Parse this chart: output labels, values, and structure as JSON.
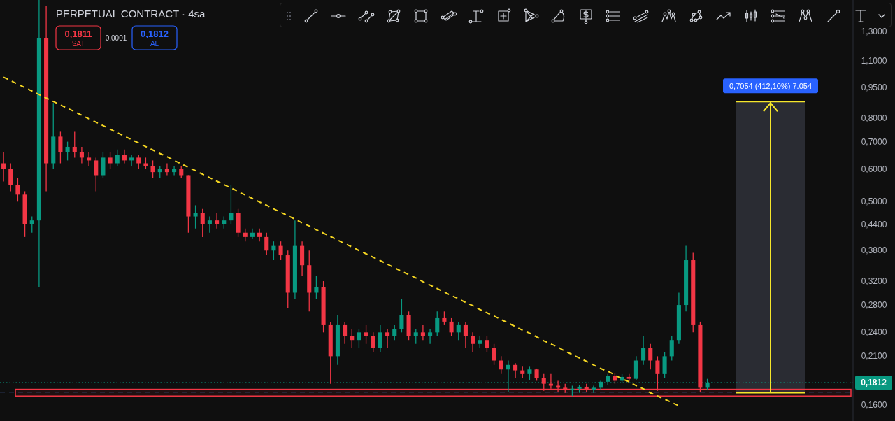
{
  "chart_data": {
    "type": "candlestick",
    "title": "PERPETUAL CONTRACT · 4sa",
    "categories": [
      null,
      null,
      null,
      null,
      null,
      null,
      null,
      null,
      null,
      null,
      null,
      null,
      null,
      null,
      null,
      null,
      null,
      null,
      null,
      null,
      null,
      null,
      null,
      null,
      null,
      null,
      null,
      null,
      null,
      null,
      null,
      null,
      null,
      null,
      null,
      null,
      null,
      null,
      null,
      null,
      null,
      null,
      null,
      null,
      null,
      null,
      null,
      null,
      null,
      null,
      null,
      null,
      null,
      null,
      null,
      null,
      null,
      null,
      null,
      null,
      null,
      null,
      null,
      null,
      null,
      null,
      null,
      null,
      null,
      null,
      null,
      null,
      null,
      null,
      null,
      null,
      null,
      null,
      null,
      null,
      null,
      null,
      null,
      null,
      null,
      null,
      null,
      null,
      null,
      null,
      null,
      null,
      null,
      null,
      null,
      null,
      null,
      null,
      null,
      null,
      null,
      null,
      null,
      null,
      null,
      null,
      null,
      null,
      null,
      null,
      null,
      null,
      null,
      null,
      null,
      null,
      null,
      null,
      null,
      null
    ],
    "ohlc": [
      [
        0.62,
        0.66,
        0.56,
        0.6
      ],
      [
        0.6,
        0.62,
        0.53,
        0.55
      ],
      [
        0.55,
        0.57,
        0.5,
        0.52
      ],
      [
        0.52,
        0.53,
        0.41,
        0.44
      ],
      [
        0.44,
        0.46,
        0.42,
        0.45
      ],
      [
        0.45,
        1.55,
        0.31,
        1.25
      ],
      [
        1.25,
        1.5,
        0.53,
        0.62
      ],
      [
        0.62,
        0.87,
        0.6,
        0.72
      ],
      [
        0.72,
        0.74,
        0.62,
        0.66
      ],
      [
        0.66,
        0.7,
        0.63,
        0.68
      ],
      [
        0.68,
        0.74,
        0.64,
        0.66
      ],
      [
        0.66,
        0.68,
        0.62,
        0.64
      ],
      [
        0.64,
        0.66,
        0.61,
        0.63
      ],
      [
        0.63,
        0.64,
        0.53,
        0.58
      ],
      [
        0.58,
        0.66,
        0.57,
        0.64
      ],
      [
        0.64,
        0.66,
        0.6,
        0.62
      ],
      [
        0.62,
        0.67,
        0.61,
        0.65
      ],
      [
        0.65,
        0.67,
        0.62,
        0.63
      ],
      [
        0.63,
        0.65,
        0.61,
        0.64
      ],
      [
        0.64,
        0.65,
        0.6,
        0.62
      ],
      [
        0.62,
        0.64,
        0.6,
        0.61
      ],
      [
        0.61,
        0.63,
        0.57,
        0.59
      ],
      [
        0.59,
        0.61,
        0.57,
        0.6
      ],
      [
        0.6,
        0.62,
        0.58,
        0.59
      ],
      [
        0.59,
        0.61,
        0.58,
        0.6
      ],
      [
        0.6,
        0.61,
        0.57,
        0.58
      ],
      [
        0.58,
        0.58,
        0.42,
        0.46
      ],
      [
        0.46,
        0.49,
        0.43,
        0.47
      ],
      [
        0.47,
        0.48,
        0.41,
        0.44
      ],
      [
        0.44,
        0.46,
        0.42,
        0.45
      ],
      [
        0.45,
        0.47,
        0.43,
        0.44
      ],
      [
        0.44,
        0.46,
        0.43,
        0.45
      ],
      [
        0.45,
        0.55,
        0.44,
        0.47
      ],
      [
        0.47,
        0.48,
        0.41,
        0.42
      ],
      [
        0.42,
        0.43,
        0.4,
        0.41
      ],
      [
        0.41,
        0.43,
        0.405,
        0.42
      ],
      [
        0.42,
        0.43,
        0.4,
        0.41
      ],
      [
        0.41,
        0.42,
        0.37,
        0.38
      ],
      [
        0.38,
        0.4,
        0.36,
        0.39
      ],
      [
        0.39,
        0.4,
        0.36,
        0.37
      ],
      [
        0.37,
        0.38,
        0.275,
        0.3
      ],
      [
        0.3,
        0.45,
        0.29,
        0.39
      ],
      [
        0.39,
        0.4,
        0.33,
        0.35
      ],
      [
        0.35,
        0.38,
        0.27,
        0.3
      ],
      [
        0.3,
        0.33,
        0.29,
        0.31
      ],
      [
        0.31,
        0.32,
        0.24,
        0.25
      ],
      [
        0.25,
        0.255,
        0.18,
        0.21
      ],
      [
        0.21,
        0.265,
        0.2,
        0.25
      ],
      [
        0.25,
        0.255,
        0.225,
        0.235
      ],
      [
        0.235,
        0.245,
        0.22,
        0.23
      ],
      [
        0.23,
        0.245,
        0.22,
        0.24
      ],
      [
        0.24,
        0.25,
        0.225,
        0.235
      ],
      [
        0.235,
        0.24,
        0.215,
        0.22
      ],
      [
        0.22,
        0.25,
        0.215,
        0.24
      ],
      [
        0.24,
        0.245,
        0.22,
        0.235
      ],
      [
        0.235,
        0.25,
        0.23,
        0.245
      ],
      [
        0.245,
        0.29,
        0.24,
        0.265
      ],
      [
        0.265,
        0.27,
        0.23,
        0.235
      ],
      [
        0.235,
        0.245,
        0.225,
        0.24
      ],
      [
        0.24,
        0.25,
        0.23,
        0.235
      ],
      [
        0.235,
        0.245,
        0.225,
        0.24
      ],
      [
        0.24,
        0.27,
        0.235,
        0.26
      ],
      [
        0.26,
        0.27,
        0.25,
        0.255
      ],
      [
        0.255,
        0.26,
        0.235,
        0.24
      ],
      [
        0.24,
        0.255,
        0.23,
        0.25
      ],
      [
        0.25,
        0.255,
        0.22,
        0.235
      ],
      [
        0.235,
        0.24,
        0.215,
        0.225
      ],
      [
        0.225,
        0.235,
        0.22,
        0.23
      ],
      [
        0.23,
        0.235,
        0.215,
        0.22
      ],
      [
        0.22,
        0.225,
        0.2,
        0.205
      ],
      [
        0.205,
        0.21,
        0.19,
        0.195
      ],
      [
        0.195,
        0.205,
        0.172,
        0.2
      ],
      [
        0.2,
        0.202,
        0.186,
        0.194
      ],
      [
        0.194,
        0.198,
        0.186,
        0.19
      ],
      [
        0.19,
        0.198,
        0.184,
        0.195
      ],
      [
        0.195,
        0.196,
        0.183,
        0.186
      ],
      [
        0.186,
        0.19,
        0.173,
        0.18
      ],
      [
        0.18,
        0.19,
        0.175,
        0.178
      ],
      [
        0.178,
        0.183,
        0.172,
        0.176
      ],
      [
        0.176,
        0.18,
        0.171,
        0.174
      ],
      [
        0.174,
        0.178,
        0.168,
        0.175
      ],
      [
        0.175,
        0.179,
        0.171,
        0.177
      ],
      [
        0.177,
        0.18,
        0.172,
        0.174
      ],
      [
        0.174,
        0.178,
        0.171,
        0.176
      ],
      [
        0.176,
        0.183,
        0.174,
        0.182
      ],
      [
        0.182,
        0.19,
        0.179,
        0.188
      ],
      [
        0.188,
        0.191,
        0.18,
        0.183
      ],
      [
        0.183,
        0.19,
        0.181,
        0.187
      ],
      [
        0.187,
        0.19,
        0.182,
        0.185
      ],
      [
        0.185,
        0.21,
        0.184,
        0.205
      ],
      [
        0.205,
        0.235,
        0.2,
        0.22
      ],
      [
        0.22,
        0.225,
        0.195,
        0.205
      ],
      [
        0.205,
        0.21,
        0.173,
        0.19
      ],
      [
        0.19,
        0.215,
        0.186,
        0.21
      ],
      [
        0.21,
        0.235,
        0.205,
        0.23
      ],
      [
        0.23,
        0.3,
        0.225,
        0.28
      ],
      [
        0.28,
        0.39,
        0.27,
        0.36
      ],
      [
        0.36,
        0.375,
        0.24,
        0.25
      ],
      [
        0.25,
        0.255,
        0.172,
        0.176
      ],
      [
        0.176,
        0.185,
        0.174,
        0.1812
      ],
      null,
      null,
      null,
      null,
      null,
      null,
      null,
      null,
      null,
      null,
      null,
      null,
      null,
      null,
      null,
      null,
      null,
      null,
      null,
      null
    ],
    "colors": [
      "#f23645",
      "#f23645",
      "#f23645",
      "#f23645",
      "#089981",
      "#089981",
      "#f23645",
      "#089981",
      "#f23645",
      "#089981",
      "#f23645",
      "#f23645",
      "#f23645",
      "#f23645",
      "#089981",
      "#f23645",
      "#089981",
      "#f23645",
      "#089981",
      "#f23645",
      "#f23645",
      "#f23645",
      "#089981",
      "#f23645",
      "#089981",
      "#f23645",
      "#f23645",
      "#089981",
      "#f23645",
      "#089981",
      "#f23645",
      "#089981",
      "#089981",
      "#f23645",
      "#f23645",
      "#089981",
      "#f23645",
      "#f23645",
      "#089981",
      "#f23645",
      "#f23645",
      "#089981",
      "#f23645",
      "#f23645",
      "#089981",
      "#f23645",
      "#f23645",
      "#089981",
      "#f23645",
      "#f23645",
      "#089981",
      "#f23645",
      "#f23645",
      "#089981",
      "#f23645",
      "#089981",
      "#089981",
      "#f23645",
      "#089981",
      "#f23645",
      "#089981",
      "#089981",
      "#f23645",
      "#f23645",
      "#089981",
      "#f23645",
      "#f23645",
      "#089981",
      "#f23645",
      "#f23645",
      "#f23645",
      "#089981",
      "#f23645",
      "#f23645",
      "#089981",
      "#f23645",
      "#f23645",
      "#f23645",
      "#f23645",
      "#f23645",
      "#089981",
      "#089981",
      "#f23645",
      "#089981",
      "#089981",
      "#089981",
      "#f23645",
      "#089981",
      "#f23645",
      "#089981",
      "#089981",
      "#f23645",
      "#f23645",
      "#089981",
      "#089981",
      "#089981",
      "#089981",
      "#f23645",
      "#f23645",
      "#089981",
      null,
      null,
      null,
      null,
      null,
      null,
      null,
      null,
      null,
      null,
      null,
      null,
      null,
      null,
      null,
      null,
      null,
      null,
      null,
      null
    ],
    "series": [
      {
        "type": "line",
        "color": "#f5d622",
        "line_style": "dashed",
        "values": [
          1.005,
          0.986,
          0.967,
          0.948,
          0.93,
          0.912,
          0.894,
          0.877,
          0.86,
          0.844,
          0.828,
          0.812,
          0.796,
          0.781,
          0.766,
          0.751,
          0.736,
          0.722,
          0.708,
          0.695,
          0.681,
          0.668,
          0.655,
          0.643,
          0.63,
          0.618,
          0.606,
          0.595,
          0.583,
          0.572,
          0.561,
          0.55,
          0.54,
          0.529,
          0.519,
          0.509,
          0.499,
          0.49,
          0.48,
          0.471,
          0.462,
          0.453,
          0.444,
          0.436,
          0.427,
          0.419,
          0.411,
          0.403,
          0.395,
          0.388,
          0.38,
          0.373,
          0.366,
          0.359,
          0.352,
          0.345,
          0.338,
          0.332,
          0.326,
          0.319,
          0.313,
          0.307,
          0.301,
          0.295,
          0.29,
          0.284,
          0.279,
          0.273,
          0.268,
          0.263,
          0.258,
          0.253,
          0.248,
          0.243,
          0.239,
          0.234,
          0.229,
          0.225,
          0.221,
          0.216,
          0.212,
          0.208,
          0.204,
          0.2,
          0.196,
          0.193,
          0.189,
          0.185,
          0.182,
          0.178,
          0.175,
          0.171,
          0.168,
          0.165,
          0.162,
          0.159,
          null,
          null,
          null,
          null,
          null,
          null,
          null,
          null,
          null,
          null,
          null,
          null,
          null,
          null,
          null,
          null,
          null,
          null,
          null,
          null,
          null,
          null,
          null,
          null
        ]
      }
    ],
    "log": true,
    "ylim": [
      0.146,
      1.55
    ],
    "yticks": [
      {
        "value": 1.3,
        "label": "1,3000"
      },
      {
        "value": 1.1,
        "label": "1,1000"
      },
      {
        "value": 0.95,
        "label": "0,9500"
      },
      {
        "value": 0.8,
        "label": "0,8000"
      },
      {
        "value": 0.7,
        "label": "0,7000"
      },
      {
        "value": 0.6,
        "label": "0,6000"
      },
      {
        "value": 0.5,
        "label": "0,5000"
      },
      {
        "value": 0.44,
        "label": "0,4400"
      },
      {
        "value": 0.38,
        "label": "0,3800"
      },
      {
        "value": 0.32,
        "label": "0,3200"
      },
      {
        "value": 0.28,
        "label": "0,2800"
      },
      {
        "value": 0.24,
        "label": "0,2400"
      },
      {
        "value": 0.21,
        "label": "0,2100"
      },
      {
        "value": 0.16,
        "label": "0,1600"
      }
    ],
    "tick_labels": "y",
    "ref_lines": [
      {
        "axis": "y",
        "value": 0.1812,
        "label": "0,1812",
        "color": "#089981",
        "line_style": "dotted"
      },
      {
        "axis": "y",
        "value": 0.1717,
        "color": "#5b7bd5",
        "line_style": "dashed"
      }
    ],
    "bands": [
      {
        "axis": "y",
        "from": 0.168,
        "to": 0.1745,
        "color": "#f23645"
      },
      {
        "axis": "y",
        "from": 0.1712,
        "to": 0.8766,
        "label": "0,7054 (412,10%) 7.054",
        "color": "#2a2c33"
      }
    ],
    "annotations": [
      "0,1811",
      "SAT",
      "0,0001",
      "0,1812",
      "AL"
    ]
  }
}
